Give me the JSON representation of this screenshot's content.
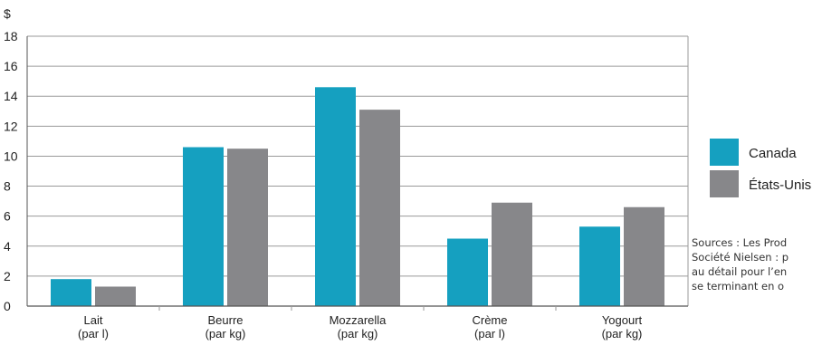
{
  "colors": {
    "canada": "#15a0c0",
    "etats_unis": "#87878a",
    "grid": "#9a9a9a",
    "axis": "#555555"
  },
  "chart_data": {
    "type": "bar",
    "title": "",
    "ylabel": "$",
    "xlabel": "",
    "ylim": [
      0,
      18
    ],
    "yticks": [
      0,
      2,
      4,
      6,
      8,
      10,
      12,
      14,
      16,
      18
    ],
    "grid": true,
    "legend_position": "right",
    "categories": [
      {
        "name": "Lait",
        "unit": "(par l)"
      },
      {
        "name": "Beurre",
        "unit": "(par kg)"
      },
      {
        "name": "Mozzarella",
        "unit": "(par kg)"
      },
      {
        "name": "Crème",
        "unit": "(par l)"
      },
      {
        "name": "Yogourt",
        "unit": "(par kg)"
      }
    ],
    "series": [
      {
        "name": "Canada",
        "color_key": "canada",
        "values": [
          1.8,
          10.6,
          14.6,
          4.5,
          5.3
        ]
      },
      {
        "name": "États-Unis",
        "color_key": "etats_unis",
        "values": [
          1.3,
          10.5,
          13.1,
          6.9,
          6.6
        ]
      }
    ]
  },
  "sources": [
    "Sources : Les Prod",
    "Société Nielsen : p",
    "au détail pour l’en",
    "se terminant en o"
  ]
}
